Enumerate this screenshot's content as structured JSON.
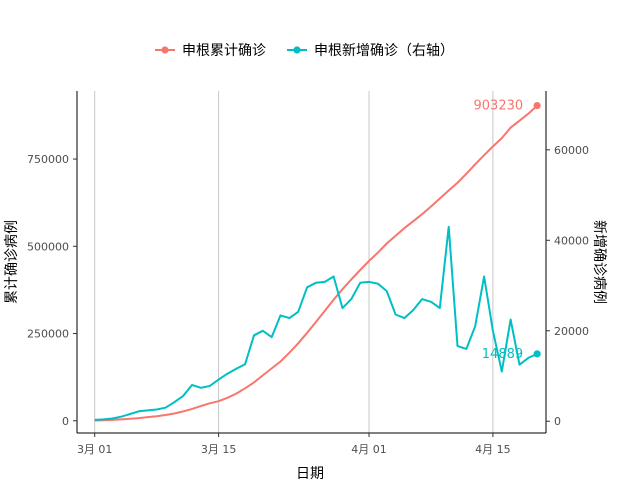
{
  "chart_data": {
    "type": "line",
    "xlabel": "日期",
    "ylabel_left": "累计确诊病例",
    "ylabel_right": "新增确诊病例",
    "x_ticks": [
      "3月 01",
      "3月 15",
      "4月 01",
      "4月 15"
    ],
    "x_tick_days": [
      0,
      14,
      31,
      45
    ],
    "xlim": [
      -2,
      51
    ],
    "y_left_ticks": [
      "0",
      "250000",
      "500000",
      "750000"
    ],
    "y_left_tick_values": [
      0,
      250000,
      500000,
      750000
    ],
    "y_left_lim": [
      -35000,
      945000
    ],
    "y_right_ticks": [
      "0",
      "20000",
      "40000",
      "60000"
    ],
    "y_right_tick_values": [
      0,
      20000,
      40000,
      60000
    ],
    "y_right_lim": [
      -2600,
      73000
    ],
    "grid": "vertical-major",
    "legend_position": "top",
    "colors": {
      "cumulative": "#F8766D",
      "daily": "#00BFC4"
    },
    "series": [
      {
        "name": "申根累计确诊",
        "axis": "left",
        "color": "#F8766D",
        "end_label": "903230",
        "days": [
          0,
          1,
          2,
          3,
          4,
          5,
          6,
          7,
          8,
          9,
          10,
          11,
          12,
          13,
          14,
          15,
          16,
          17,
          18,
          19,
          20,
          21,
          22,
          23,
          24,
          25,
          26,
          27,
          28,
          29,
          30,
          31,
          32,
          33,
          34,
          35,
          36,
          37,
          38,
          39,
          40,
          41,
          42,
          43,
          44,
          45,
          46,
          47,
          48,
          49,
          50
        ],
        "values": [
          800,
          1500,
          2500,
          4000,
          5800,
          7800,
          10500,
          13000,
          16500,
          21000,
          27000,
          34000,
          42000,
          50000,
          56000,
          66000,
          78000,
          93000,
          110000,
          130000,
          150000,
          170000,
          195000,
          222000,
          252000,
          283000,
          315000,
          347000,
          377000,
          405000,
          432000,
          458000,
          482000,
          508000,
          530000,
          552000,
          572000,
          592000,
          614000,
          637000,
          660000,
          682000,
          708000,
          735000,
          761000,
          786000,
          810000,
          840000,
          860000,
          880000,
          903230
        ]
      },
      {
        "name": "申根新增确诊（右轴）",
        "axis": "right",
        "color": "#00BFC4",
        "end_label": "14889",
        "days": [
          0,
          1,
          2,
          3,
          4,
          5,
          6,
          7,
          8,
          9,
          10,
          11,
          12,
          13,
          14,
          15,
          16,
          17,
          18,
          19,
          20,
          21,
          22,
          23,
          24,
          25,
          26,
          27,
          28,
          29,
          30,
          31,
          32,
          33,
          34,
          35,
          36,
          37,
          38,
          39,
          40,
          41,
          42,
          43,
          44,
          45,
          46,
          47,
          48,
          49,
          50
        ],
        "values": [
          300,
          400,
          600,
          1000,
          1600,
          2200,
          2400,
          2600,
          3000,
          4200,
          5600,
          8000,
          7400,
          7800,
          9200,
          10500,
          11600,
          12600,
          19000,
          20000,
          18600,
          23400,
          22800,
          24200,
          29600,
          30600,
          30800,
          32000,
          25000,
          27000,
          30600,
          30800,
          30400,
          28800,
          23600,
          22800,
          24600,
          27000,
          26400,
          25000,
          43000,
          16600,
          16000,
          21000,
          32000,
          20000,
          11000,
          22500,
          12500,
          14000,
          14889
        ]
      }
    ]
  }
}
